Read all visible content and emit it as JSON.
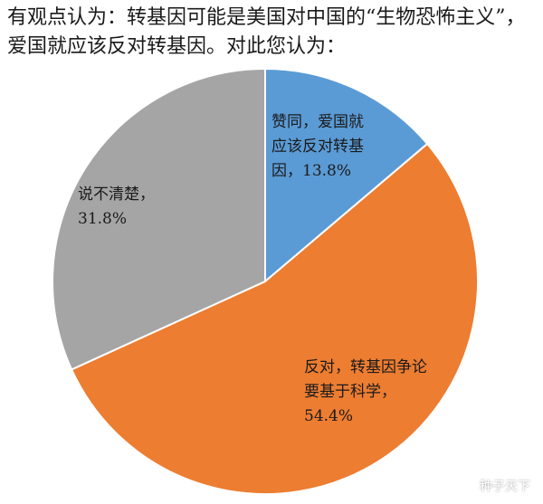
{
  "question": "有观点认为：转基因可能是美国对中国的“生物恐怖主义”，爱国就应该反对转基因。对此您认为：",
  "chart_data": {
    "type": "pie",
    "slices": [
      {
        "label": "赞同，爱国就应该反对转基因，13.8%",
        "value": 13.8,
        "color": "#5b9bd5"
      },
      {
        "label": "反对，转基因争论要基于科学，54.4%",
        "value": 54.4,
        "color": "#ed7d31"
      },
      {
        "label": "说不清楚，31.8%",
        "value": 31.8,
        "color": "#a5a5a5"
      }
    ],
    "start_angle": "12 o'clock",
    "direction": "clockwise",
    "legend": "none"
  },
  "labels": {
    "agree": "赞同，爱国就应该反对转基因，13.8%",
    "oppose": "反对，转基因争论要基于科学，54.4%",
    "unsure": "说不清楚，31.8%"
  },
  "watermark": {
    "text": "种子天下",
    "icon": "wechat-logo-icon"
  }
}
